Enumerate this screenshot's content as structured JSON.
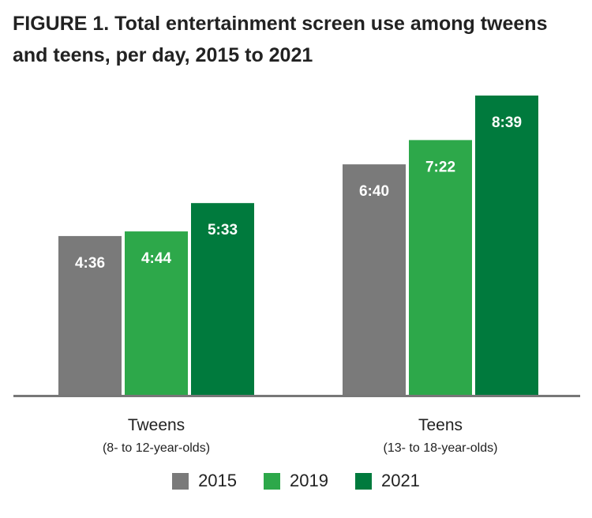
{
  "chart_data": {
    "type": "bar",
    "title": "FIGURE 1. Total entertainment screen use among tweens and teens, per day, 2015 to 2021",
    "categories": [
      {
        "label": "Tweens",
        "sublabel": "(8- to 12-year-olds)"
      },
      {
        "label": "Teens",
        "sublabel": "(13- to 18-year-olds)"
      }
    ],
    "series": [
      {
        "name": "2015",
        "color": "#7a7a7a",
        "values_minutes": [
          276,
          400
        ],
        "labels": [
          "4:36",
          "6:40"
        ]
      },
      {
        "name": "2019",
        "color": "#2da84a",
        "values_minutes": [
          284,
          442
        ],
        "labels": [
          "4:44",
          "7:22"
        ]
      },
      {
        "name": "2021",
        "color": "#007a3d",
        "values_minutes": [
          333,
          519
        ],
        "labels": [
          "5:33",
          "8:39"
        ]
      }
    ],
    "ylim": [
      0,
      519
    ],
    "xlabel": "",
    "ylabel": "",
    "legend": "bottom"
  }
}
